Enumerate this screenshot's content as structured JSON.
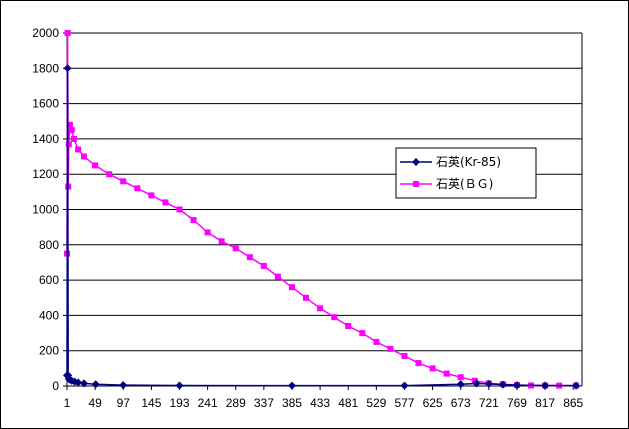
{
  "chart_data": {
    "type": "line",
    "title": "",
    "xlabel": "",
    "ylabel": "",
    "x_tick_labels": [
      "1",
      "49",
      "97",
      "145",
      "193",
      "241",
      "289",
      "337",
      "385",
      "433",
      "481",
      "529",
      "577",
      "625",
      "673",
      "721",
      "769",
      "817",
      "865"
    ],
    "x_range": [
      1,
      880
    ],
    "ylim": [
      0,
      2000
    ],
    "y_ticks": [
      0,
      200,
      400,
      600,
      800,
      1000,
      1200,
      1400,
      1600,
      1800,
      2000
    ],
    "grid": "horizontal",
    "legend_position": "right",
    "series": [
      {
        "name": "石英(Kr-85)",
        "color": "#000080",
        "marker": "diamond",
        "x": [
          1,
          2,
          3,
          4,
          6,
          9,
          14,
          20,
          30,
          50,
          97,
          193,
          385,
          577,
          673,
          700,
          721,
          745,
          769,
          817,
          870
        ],
        "y": [
          60,
          1800,
          60,
          40,
          35,
          30,
          25,
          20,
          15,
          10,
          5,
          3,
          2,
          2,
          10,
          14,
          12,
          8,
          5,
          3,
          2
        ]
      },
      {
        "name": "石英(ＢＧ)",
        "color": "#ff00ff",
        "marker": "square",
        "x": [
          1,
          2,
          3,
          4,
          6,
          9,
          13,
          20,
          30,
          49,
          73,
          97,
          121,
          145,
          169,
          193,
          217,
          241,
          265,
          289,
          313,
          337,
          361,
          385,
          409,
          433,
          457,
          481,
          505,
          529,
          553,
          577,
          601,
          625,
          649,
          673,
          697,
          721,
          745,
          769,
          793,
          817,
          841,
          870
        ],
        "y": [
          750,
          2000,
          1130,
          1370,
          1480,
          1450,
          1400,
          1340,
          1300,
          1250,
          1200,
          1160,
          1120,
          1080,
          1040,
          1000,
          940,
          870,
          820,
          780,
          730,
          680,
          620,
          560,
          500,
          440,
          390,
          340,
          300,
          250,
          210,
          170,
          130,
          100,
          70,
          50,
          30,
          15,
          10,
          5,
          3,
          2,
          2,
          2
        ]
      }
    ]
  }
}
